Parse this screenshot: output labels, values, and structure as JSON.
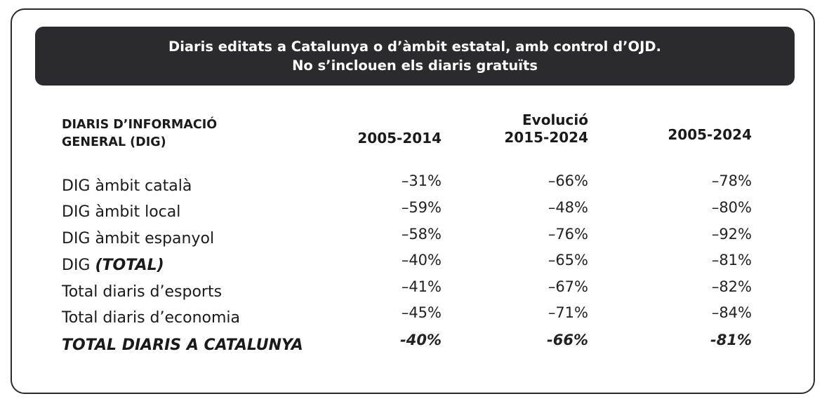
{
  "title": {
    "line1": "Diaris editats a Catalunya o d’àmbit estatal, amb control d’OJD.",
    "line2": "No s’inclouen els diaris gratuïts"
  },
  "header": {
    "label_line1": "DIARIS D’INFORMACIÓ",
    "label_line2": "GENERAL (DIG)",
    "evolucio": "Evolució",
    "col1": "2005-2014",
    "col2": "2015-2024",
    "col3": "2005-2024"
  },
  "rows": [
    {
      "label": "DIG àmbit català",
      "v1": "–31%",
      "v2": "–66%",
      "v3": "–78%"
    },
    {
      "label": "DIG àmbit local",
      "v1": "–59%",
      "v2": "–48%",
      "v3": "–80%"
    },
    {
      "label": "DIG àmbit espanyol",
      "v1": "–58%",
      "v2": "–76%",
      "v3": "–92%"
    },
    {
      "label_prefix": "DIG ",
      "label_emph": "(TOTAL)",
      "v1": "–40%",
      "v2": "–65%",
      "v3": "–81%"
    },
    {
      "label": "Total diaris d’esports",
      "v1": "–41%",
      "v2": "–67%",
      "v3": "–82%"
    },
    {
      "label": "Total diaris d’economia",
      "v1": "–45%",
      "v2": "–71%",
      "v3": "–84%"
    },
    {
      "label": "TOTAL DIARIS A CATALUNYA",
      "v1": "-40%",
      "v2": "-66%",
      "v3": "-81%"
    }
  ]
}
